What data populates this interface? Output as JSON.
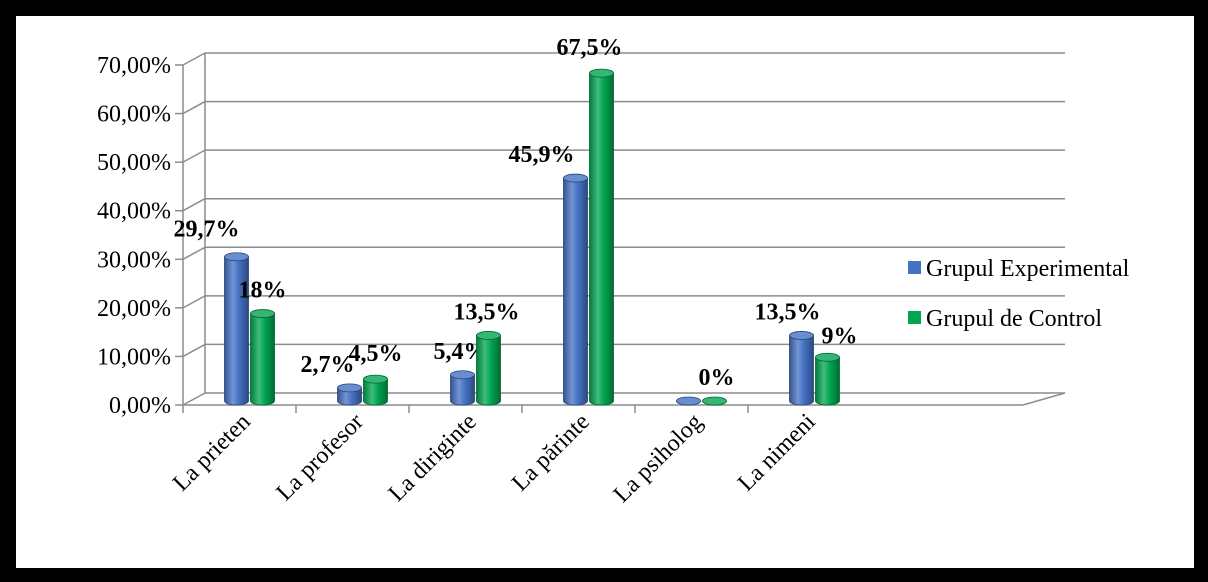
{
  "chart_data": {
    "type": "bar",
    "categories": [
      "La prieten",
      "La profesor",
      "La diriginte",
      "La părinte",
      "La psiholog",
      "La nimeni"
    ],
    "series": [
      {
        "name": "Grupul Experimental",
        "color": "#4472C4",
        "values": [
          29.7,
          2.7,
          5.4,
          45.9,
          0,
          13.5
        ],
        "labels": [
          "29,7%",
          "2,7%",
          "5,4%",
          "45,9%",
          "0%",
          "13,5%"
        ]
      },
      {
        "name": "Grupul de Control",
        "color": "#00A651",
        "values": [
          18,
          4.5,
          13.5,
          67.5,
          0,
          9
        ],
        "labels": [
          "18%",
          "4,5%",
          "13,5%",
          "67,5%",
          "",
          "9%"
        ]
      }
    ],
    "ylim": [
      0,
      70
    ],
    "yticks": [
      0,
      10,
      20,
      30,
      40,
      50,
      60,
      70
    ],
    "ytick_labels": [
      "0,00%",
      "10,00%",
      "20,00%",
      "30,00%",
      "40,00%",
      "50,00%",
      "60,00%",
      "70,00%"
    ],
    "grid": true,
    "legend": "right",
    "style": "3d-cylinder"
  }
}
